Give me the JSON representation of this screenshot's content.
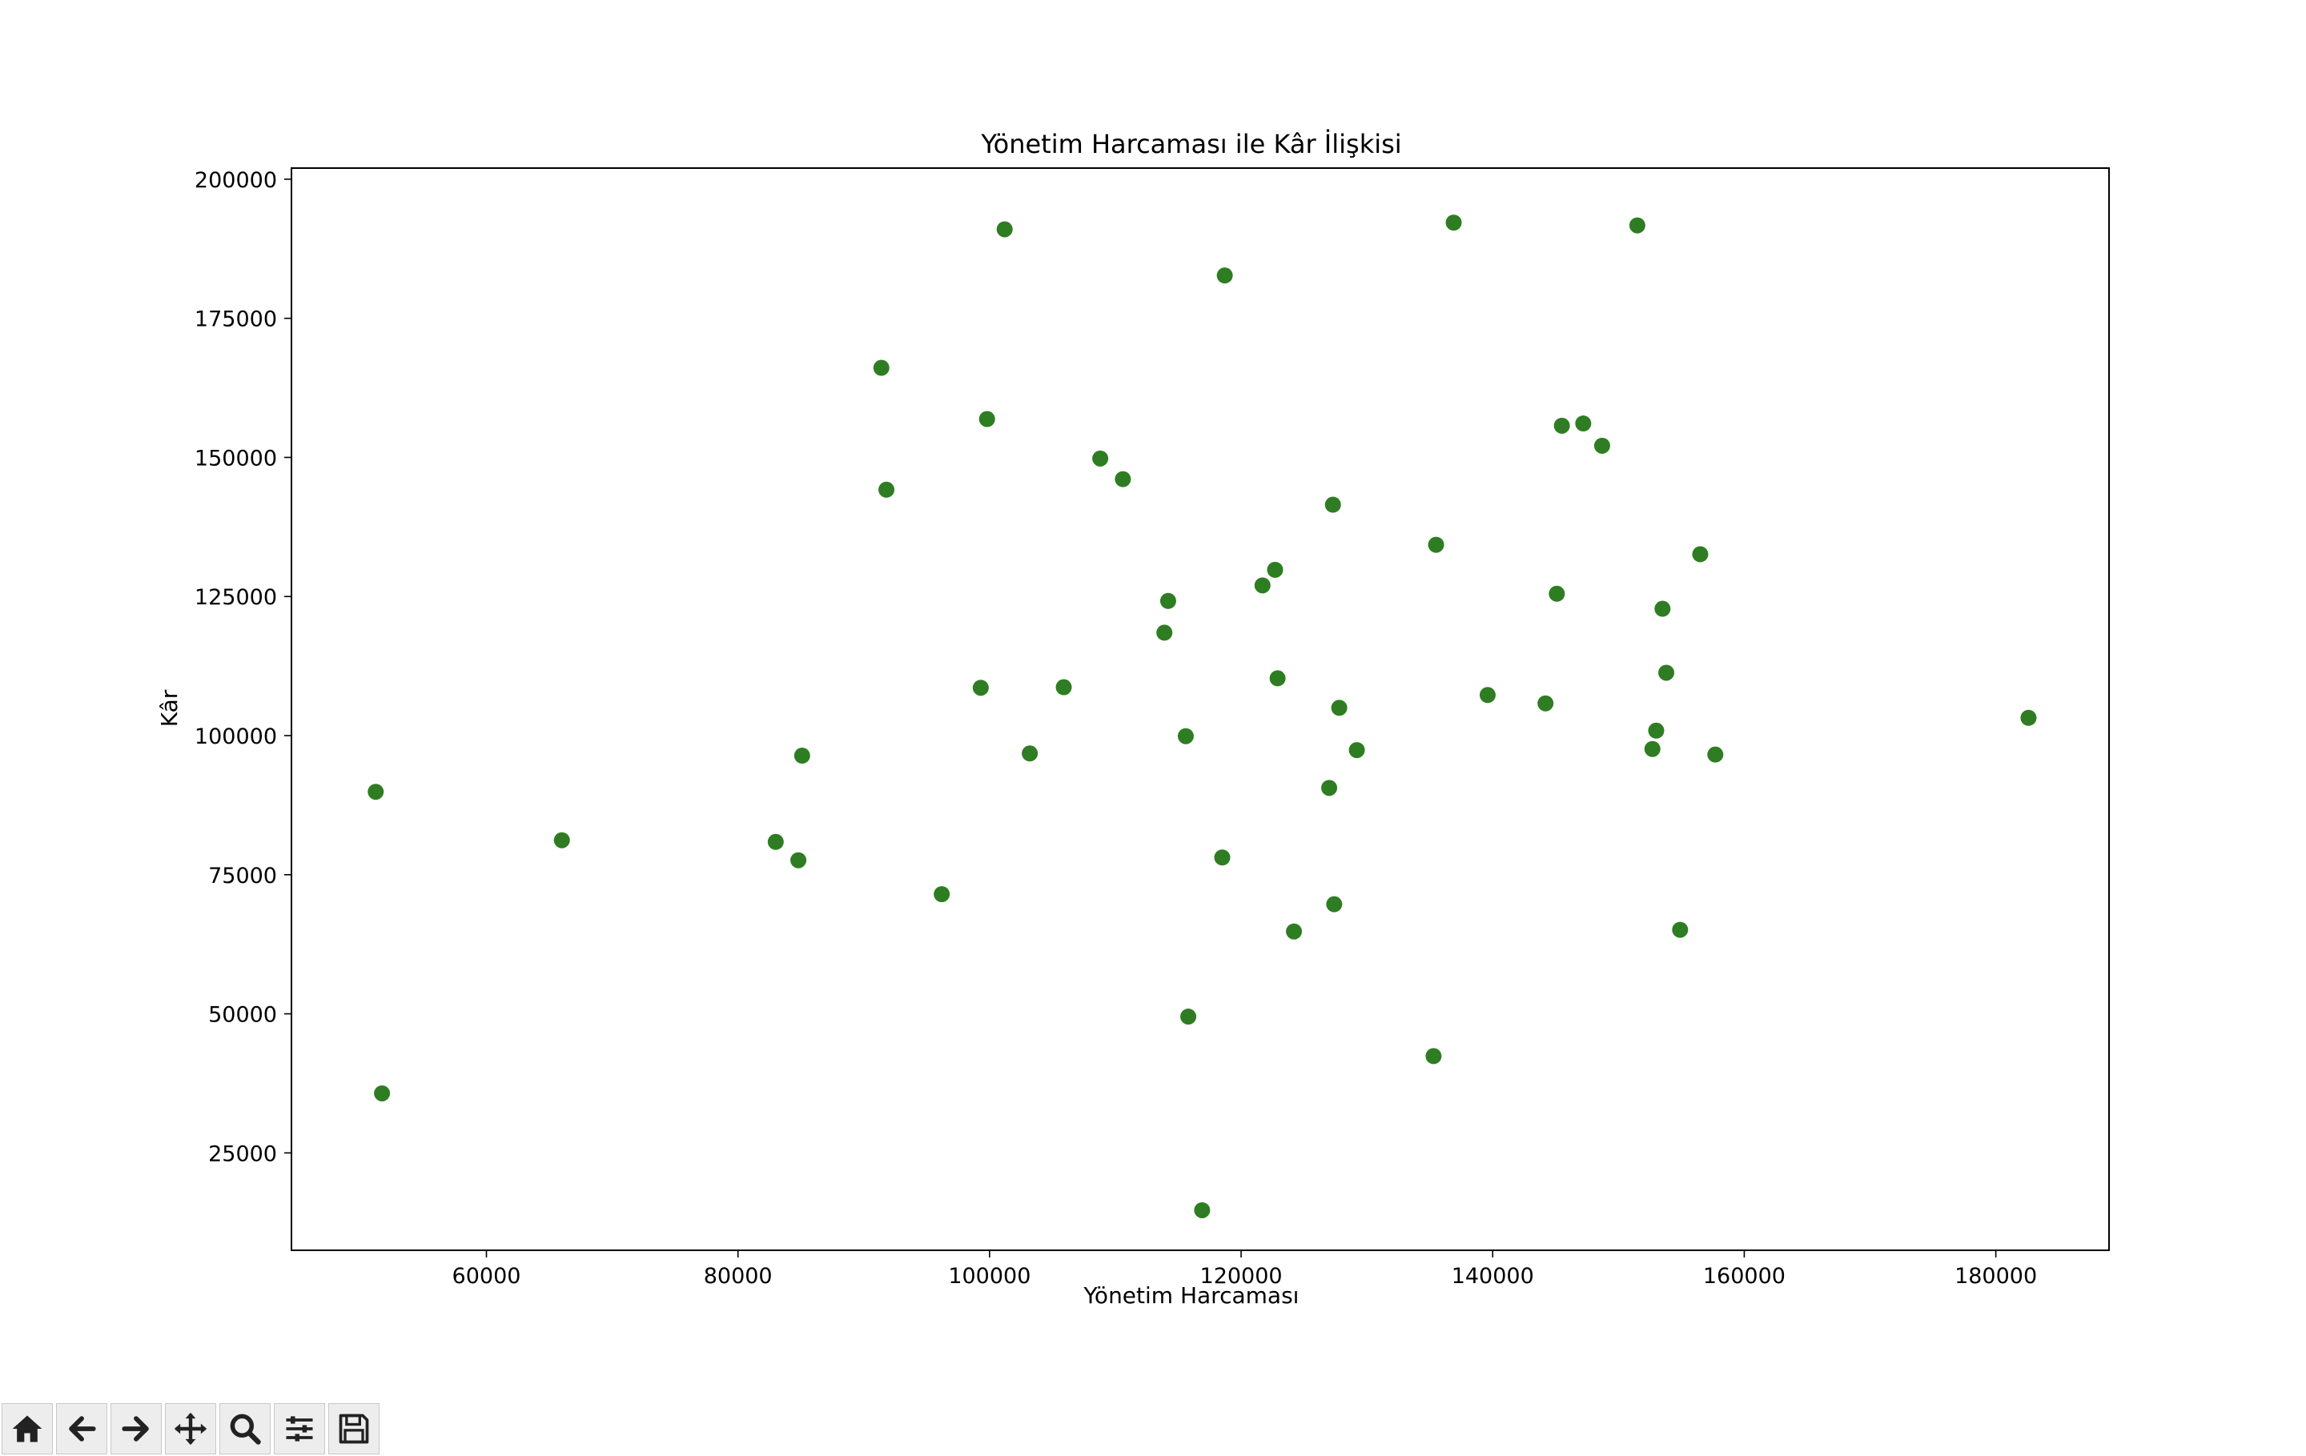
{
  "chart_data": {
    "type": "scatter",
    "title": "Yönetim Harcaması ile Kâr İlişkisi",
    "xlabel": "Yönetim Harcaması",
    "ylabel": "Kâr",
    "xlim": [
      44500,
      189000
    ],
    "ylim": [
      7500,
      202000
    ],
    "xticks": [
      60000,
      80000,
      100000,
      120000,
      140000,
      160000,
      180000
    ],
    "yticks": [
      25000,
      50000,
      75000,
      100000,
      125000,
      150000,
      175000,
      200000
    ],
    "grid": false,
    "marker_color": "#2e7d22",
    "points": [
      [
        51200,
        89900
      ],
      [
        51700,
        35700
      ],
      [
        66000,
        81200
      ],
      [
        83000,
        80900
      ],
      [
        84800,
        77600
      ],
      [
        85100,
        96400
      ],
      [
        91400,
        166100
      ],
      [
        91800,
        144200
      ],
      [
        96200,
        71500
      ],
      [
        99300,
        108600
      ],
      [
        99800,
        156900
      ],
      [
        101200,
        191000
      ],
      [
        103200,
        96800
      ],
      [
        105900,
        108700
      ],
      [
        108800,
        149800
      ],
      [
        110600,
        146100
      ],
      [
        113900,
        118500
      ],
      [
        114200,
        124200
      ],
      [
        115600,
        99900
      ],
      [
        115800,
        49500
      ],
      [
        116900,
        14700
      ],
      [
        118500,
        78100
      ],
      [
        118700,
        182700
      ],
      [
        121700,
        127000
      ],
      [
        122700,
        129800
      ],
      [
        122900,
        110300
      ],
      [
        124200,
        64800
      ],
      [
        127000,
        90600
      ],
      [
        127300,
        141500
      ],
      [
        127400,
        69700
      ],
      [
        127800,
        105000
      ],
      [
        129200,
        97400
      ],
      [
        135300,
        42400
      ],
      [
        135500,
        134300
      ],
      [
        136900,
        192200
      ],
      [
        139600,
        107300
      ],
      [
        144200,
        105800
      ],
      [
        145100,
        125500
      ],
      [
        145500,
        155700
      ],
      [
        147200,
        156100
      ],
      [
        148700,
        152100
      ],
      [
        151500,
        191700
      ],
      [
        152700,
        97600
      ],
      [
        153000,
        100900
      ],
      [
        153500,
        122800
      ],
      [
        153800,
        111300
      ],
      [
        154900,
        65100
      ],
      [
        156500,
        132600
      ],
      [
        157700,
        96600
      ],
      [
        182600,
        103200
      ]
    ]
  },
  "toolbar": {
    "buttons": [
      {
        "name": "home-icon"
      },
      {
        "name": "back-arrow-icon"
      },
      {
        "name": "forward-arrow-icon"
      },
      {
        "name": "pan-icon"
      },
      {
        "name": "zoom-icon"
      },
      {
        "name": "configure-subplots-icon"
      },
      {
        "name": "save-icon"
      }
    ]
  }
}
